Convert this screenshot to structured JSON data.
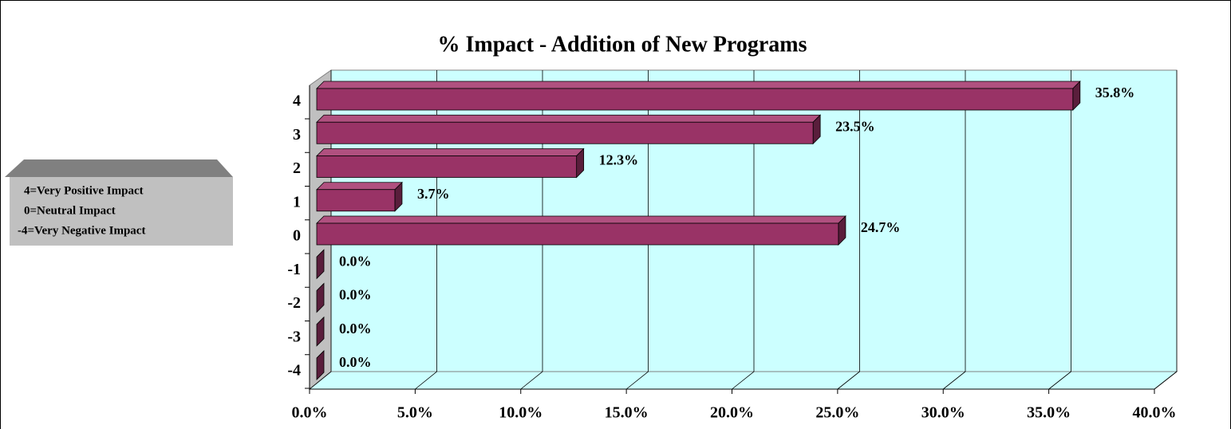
{
  "chart_data": {
    "type": "bar",
    "orientation": "horizontal",
    "title": "% Impact - Addition of New Programs",
    "categories": [
      "4",
      "3",
      "2",
      "1",
      "0",
      "-1",
      "-2",
      "-3",
      "-4"
    ],
    "values": [
      35.8,
      23.5,
      12.3,
      3.7,
      24.7,
      0,
      0,
      0,
      0
    ],
    "value_labels": [
      "35.8%",
      "23.5%",
      "12.3%",
      "3.7%",
      "24.7%",
      "0.0%",
      "0.0%",
      "0.0%",
      "0.0%"
    ],
    "color": "#993366",
    "xlim": [
      0,
      40
    ],
    "xticks": [
      {
        "value": 0,
        "label": "0.0%"
      },
      {
        "value": 5,
        "label": "5.0%"
      },
      {
        "value": 10,
        "label": "10.0%"
      },
      {
        "value": 15,
        "label": "15.0%"
      },
      {
        "value": 20,
        "label": "20.0%"
      },
      {
        "value": 25,
        "label": "25.0%"
      },
      {
        "value": 30,
        "label": "30.0%"
      },
      {
        "value": 35,
        "label": "35.0%"
      },
      {
        "value": 40,
        "label": "40.0%"
      }
    ],
    "grid": true,
    "annotations": [
      "4=Very Positive Impact",
      "0=Neutral Impact",
      "-4=Very Negative Impact"
    ]
  }
}
